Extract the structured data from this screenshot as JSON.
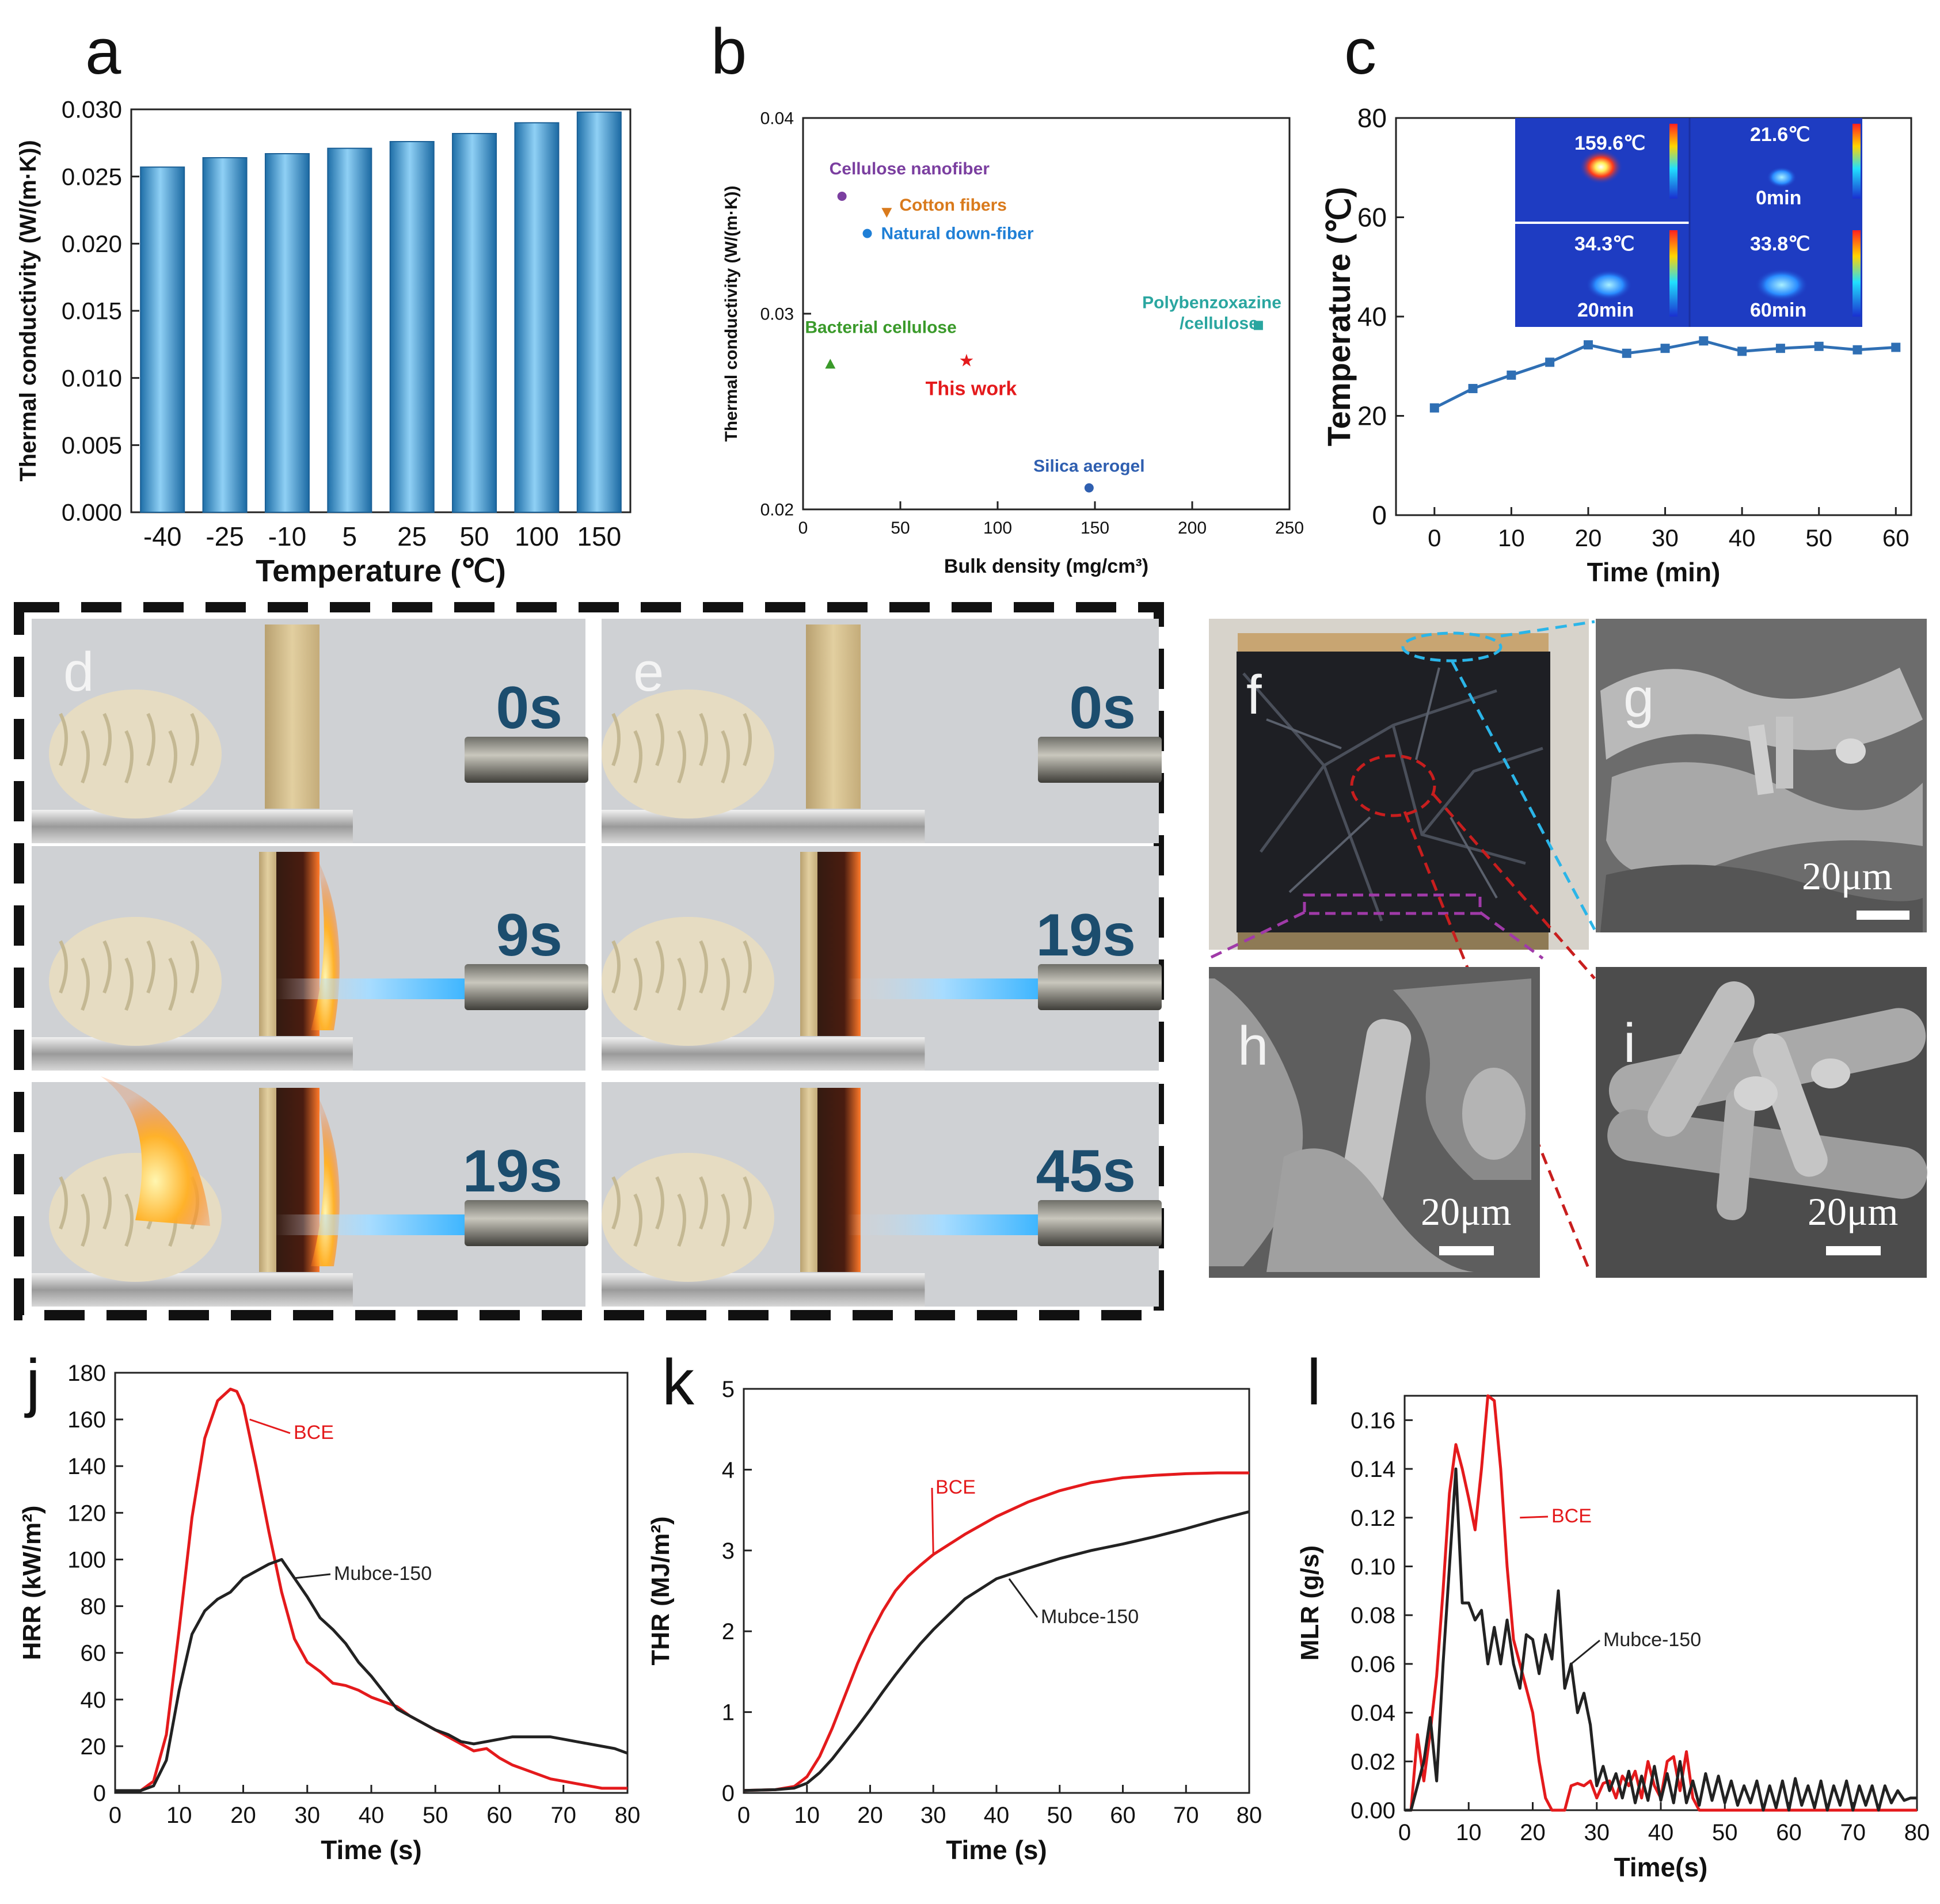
{
  "panel_letters": [
    "a",
    "b",
    "c",
    "d",
    "e",
    "f",
    "g",
    "h",
    "i",
    "j",
    "k",
    "l"
  ],
  "photos": {
    "d_times": [
      "0s",
      "9s",
      "19s"
    ],
    "e_times": [
      "0s",
      "19s",
      "45s"
    ],
    "scale_bar": "20μm",
    "thermal_temps": [
      "159.6℃",
      "21.6℃",
      "34.3℃",
      "33.8℃"
    ],
    "thermal_times": [
      "0min",
      "20min",
      "60min"
    ]
  },
  "colors": {
    "bar_blue": "#3d9bd6",
    "red": "#e41a1c",
    "black": "#222222",
    "line_blue": "#2f6fb4",
    "photo_gray": "#cfd1d4",
    "dark_sample": "#1e1f24"
  },
  "chart_data": [
    {
      "id": "a",
      "type": "bar",
      "xlabel": "Temperature (℃)",
      "ylabel": "Thermal conductivity (W/(m·K))",
      "categories": [
        "-40",
        "-25",
        "-10",
        "5",
        "25",
        "50",
        "100",
        "150"
      ],
      "values": [
        0.0257,
        0.0264,
        0.0267,
        0.0271,
        0.0276,
        0.0282,
        0.029,
        0.0298
      ],
      "ylim": [
        0,
        0.03
      ],
      "yticks": [
        "0.000",
        "0.005",
        "0.010",
        "0.015",
        "0.020",
        "0.025",
        "0.030"
      ]
    },
    {
      "id": "b",
      "type": "scatter",
      "xlabel": "Bulk density (mg/cm³)",
      "ylabel": "Thermal conductivity (W/(m·K))",
      "xlim": [
        0,
        250
      ],
      "ylim": [
        0.02,
        0.04
      ],
      "xticks": [
        "0",
        "50",
        "100",
        "150",
        "200",
        "250"
      ],
      "yticks": [
        "0.02",
        "0.03",
        "0.04"
      ],
      "points": [
        {
          "label": "Cellulose nanofiber",
          "x": 20,
          "y": 0.036,
          "color": "#7b3fa0",
          "marker": "circle"
        },
        {
          "label": "Cotton fibers",
          "x": 43,
          "y": 0.0352,
          "color": "#d97a1c",
          "marker": "tri-down"
        },
        {
          "label": "Natural down-fiber",
          "x": 33,
          "y": 0.0341,
          "color": "#1f7fd6",
          "marker": "circle"
        },
        {
          "label": "Polybenzoxazine\n/cellulose",
          "x": 234,
          "y": 0.0294,
          "color": "#2aa6a0",
          "marker": "square"
        },
        {
          "label": "Bacterial cellulose",
          "x": 14,
          "y": 0.0274,
          "color": "#3a9a2a",
          "marker": "tri-up"
        },
        {
          "label": "This work",
          "x": 84,
          "y": 0.0276,
          "color": "#e41a1c",
          "marker": "star"
        },
        {
          "label": "Silica aerogel",
          "x": 147,
          "y": 0.0211,
          "color": "#2f5fb0",
          "marker": "circle"
        }
      ]
    },
    {
      "id": "c",
      "type": "line",
      "xlabel": "Time (min)",
      "ylabel": "Temperature (℃)",
      "xlim": [
        -5,
        62
      ],
      "ylim": [
        0,
        80
      ],
      "xticks": [
        "0",
        "10",
        "20",
        "30",
        "40",
        "50",
        "60"
      ],
      "yticks": [
        "0",
        "20",
        "40",
        "60",
        "80"
      ],
      "x": [
        0,
        5,
        10,
        15,
        20,
        25,
        30,
        35,
        40,
        45,
        50,
        55,
        60
      ],
      "values": [
        21.6,
        25.5,
        28.2,
        30.8,
        34.3,
        32.6,
        33.6,
        35.1,
        33.0,
        33.6,
        34.0,
        33.3,
        33.8
      ]
    },
    {
      "id": "j",
      "type": "line",
      "xlabel": "Time (s)",
      "ylabel": "HRR (kW/m²)",
      "xlim": [
        0,
        80
      ],
      "ylim": [
        0,
        180
      ],
      "xticks": [
        "0",
        "10",
        "20",
        "30",
        "40",
        "50",
        "60",
        "70",
        "80"
      ],
      "yticks": [
        "0",
        "20",
        "40",
        "60",
        "80",
        "100",
        "120",
        "140",
        "160",
        "180"
      ],
      "series": [
        {
          "name": "BCE",
          "x": [
            0,
            4,
            6,
            8,
            10,
            12,
            14,
            16,
            18,
            19,
            20,
            22,
            24,
            26,
            28,
            30,
            32,
            34,
            36,
            38,
            40,
            42,
            44,
            46,
            48,
            50,
            52,
            54,
            56,
            58,
            60,
            62,
            64,
            66,
            68,
            70,
            72,
            74,
            76,
            78,
            80
          ],
          "values": [
            1,
            1,
            5,
            25,
            70,
            118,
            152,
            168,
            173,
            172,
            166,
            140,
            112,
            86,
            66,
            56,
            52,
            47,
            46,
            44,
            41,
            39,
            37,
            33,
            30,
            27,
            24,
            21,
            18,
            19,
            15,
            12,
            10,
            8,
            6,
            5,
            4,
            3,
            2,
            2,
            2
          ]
        },
        {
          "name": "Mubce-150",
          "x": [
            0,
            4,
            6,
            8,
            10,
            12,
            14,
            16,
            18,
            20,
            22,
            24,
            26,
            28,
            30,
            32,
            34,
            36,
            38,
            40,
            42,
            44,
            46,
            48,
            50,
            52,
            54,
            56,
            58,
            60,
            62,
            64,
            66,
            68,
            70,
            72,
            74,
            76,
            78,
            80
          ],
          "values": [
            1,
            1,
            3,
            14,
            44,
            68,
            78,
            83,
            86,
            92,
            95,
            98,
            100,
            92,
            84,
            75,
            70,
            64,
            56,
            50,
            43,
            36,
            33,
            30,
            27,
            25,
            22,
            21,
            22,
            23,
            24,
            24,
            24,
            24,
            23,
            22,
            21,
            20,
            19,
            17
          ]
        }
      ]
    },
    {
      "id": "k",
      "type": "line",
      "xlabel": "Time (s)",
      "ylabel": "THR (MJ/m²)",
      "xlim": [
        0,
        80
      ],
      "ylim": [
        0,
        5
      ],
      "xticks": [
        "0",
        "10",
        "20",
        "30",
        "40",
        "50",
        "60",
        "70",
        "80"
      ],
      "yticks": [
        "0",
        "1",
        "2",
        "3",
        "4",
        "5"
      ],
      "series": [
        {
          "name": "BCE",
          "x": [
            0,
            5,
            8,
            10,
            12,
            14,
            16,
            18,
            20,
            22,
            24,
            26,
            28,
            30,
            35,
            40,
            45,
            50,
            55,
            60,
            65,
            70,
            75,
            80
          ],
          "values": [
            0.03,
            0.04,
            0.08,
            0.2,
            0.45,
            0.8,
            1.2,
            1.6,
            1.95,
            2.25,
            2.5,
            2.68,
            2.82,
            2.95,
            3.2,
            3.42,
            3.6,
            3.74,
            3.84,
            3.9,
            3.93,
            3.95,
            3.96,
            3.96
          ]
        },
        {
          "name": "Mubce-150",
          "x": [
            0,
            5,
            8,
            10,
            12,
            14,
            16,
            18,
            20,
            22,
            24,
            26,
            28,
            30,
            35,
            40,
            45,
            50,
            55,
            60,
            65,
            70,
            75,
            80
          ],
          "values": [
            0.03,
            0.04,
            0.06,
            0.12,
            0.25,
            0.42,
            0.62,
            0.82,
            1.03,
            1.25,
            1.46,
            1.66,
            1.85,
            2.02,
            2.4,
            2.65,
            2.78,
            2.9,
            3.0,
            3.08,
            3.17,
            3.27,
            3.38,
            3.48
          ]
        }
      ]
    },
    {
      "id": "l",
      "type": "line",
      "xlabel": "Time(s)",
      "ylabel": "MLR (g/s)",
      "xlim": [
        0,
        80
      ],
      "ylim": [
        0,
        0.17
      ],
      "xticks": [
        "0",
        "10",
        "20",
        "30",
        "40",
        "50",
        "60",
        "70",
        "80"
      ],
      "yticks": [
        "0.00",
        "0.02",
        "0.04",
        "0.06",
        "0.08",
        "0.10",
        "0.12",
        "0.14",
        "0.16"
      ],
      "series": [
        {
          "name": "BCE",
          "x": [
            0,
            1,
            2,
            3,
            4,
            5,
            6,
            7,
            8,
            9,
            10,
            11,
            12,
            13,
            14,
            15,
            16,
            17,
            18,
            19,
            20,
            21,
            22,
            23,
            24,
            25,
            26,
            27,
            28,
            29,
            30,
            31,
            32,
            33,
            34,
            35,
            36,
            37,
            38,
            39,
            40,
            41,
            42,
            43,
            44,
            45,
            46,
            47,
            48,
            50,
            60,
            70,
            80
          ],
          "values": [
            0,
            0,
            0.031,
            0.012,
            0.032,
            0.055,
            0.09,
            0.13,
            0.15,
            0.14,
            0.128,
            0.115,
            0.14,
            0.17,
            0.168,
            0.14,
            0.1,
            0.07,
            0.06,
            0.05,
            0.04,
            0.02,
            0.005,
            0.0,
            0,
            0,
            0.01,
            0.011,
            0.01,
            0.012,
            0.005,
            0.011,
            0.012,
            0.005,
            0.014,
            0.01,
            0.016,
            0.005,
            0.02,
            0.01,
            0.005,
            0.02,
            0.022,
            0.008,
            0.024,
            0.005,
            0.0,
            0,
            0,
            0,
            0,
            0,
            0
          ]
        },
        {
          "name": "Mubce-150",
          "x": [
            0,
            1,
            2,
            3,
            4,
            5,
            6,
            7,
            8,
            9,
            10,
            11,
            12,
            13,
            14,
            15,
            16,
            17,
            18,
            19,
            20,
            21,
            22,
            23,
            24,
            25,
            26,
            27,
            28,
            29,
            30,
            31,
            32,
            33,
            34,
            35,
            36,
            37,
            38,
            39,
            40,
            41,
            42,
            43,
            44,
            45,
            46,
            47,
            48,
            49,
            50,
            51,
            52,
            53,
            54,
            55,
            56,
            57,
            58,
            59,
            60,
            61,
            62,
            63,
            64,
            65,
            66,
            67,
            68,
            69,
            70,
            71,
            72,
            73,
            74,
            75,
            76,
            77,
            78,
            79,
            80
          ],
          "values": [
            0,
            0,
            0.01,
            0.02,
            0.038,
            0.012,
            0.06,
            0.1,
            0.14,
            0.085,
            0.085,
            0.078,
            0.082,
            0.06,
            0.075,
            0.06,
            0.078,
            0.06,
            0.05,
            0.072,
            0.07,
            0.056,
            0.072,
            0.062,
            0.09,
            0.05,
            0.06,
            0.04,
            0.048,
            0.035,
            0.01,
            0.018,
            0.008,
            0.015,
            0.005,
            0.016,
            0.003,
            0.014,
            0.004,
            0.018,
            0.004,
            0.015,
            0.003,
            0.02,
            0.003,
            0.012,
            0.002,
            0.015,
            0.004,
            0.014,
            0.003,
            0.012,
            0.002,
            0.01,
            0.003,
            0.012,
            0.0,
            0.01,
            0.001,
            0.012,
            0.0,
            0.013,
            0.002,
            0.01,
            0.001,
            0.012,
            0.0,
            0.01,
            0.002,
            0.012,
            0.0,
            0.01,
            0.002,
            0.01,
            0.0,
            0.01,
            0.003,
            0.008,
            0.004,
            0.005,
            0.005
          ]
        }
      ]
    }
  ]
}
